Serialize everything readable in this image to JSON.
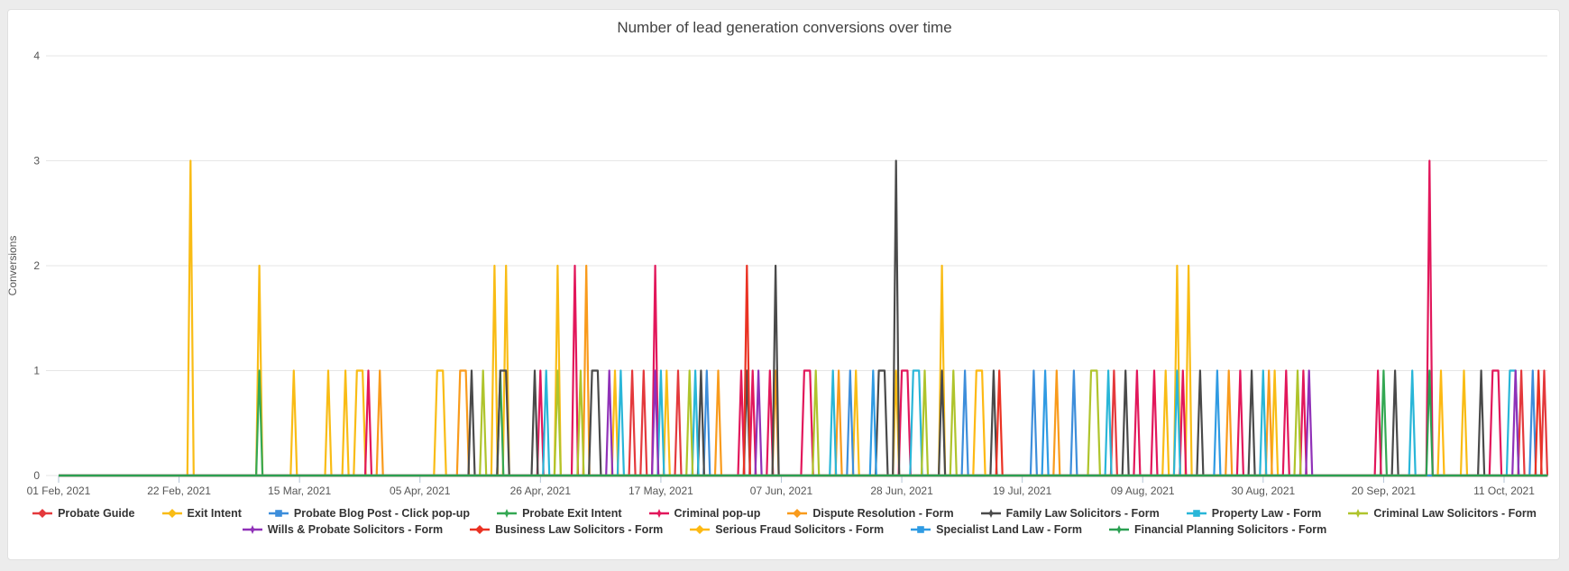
{
  "page": {
    "background": "#ececec",
    "card_background": "#ffffff"
  },
  "chart_data": {
    "type": "line",
    "title": "Number of lead generation conversions over time",
    "xlabel": "",
    "ylabel": "Conversions",
    "ylim": [
      0,
      4
    ],
    "y_ticks": [
      0,
      1,
      2,
      3,
      4
    ],
    "grid": true,
    "legend_position": "bottom",
    "x_start_date": "2021-02-01",
    "x_tick_interval_days": 21,
    "x_total_days": 259,
    "x_ticks": [
      "01 Feb, 2021",
      "22 Feb, 2021",
      "15 Mar, 2021",
      "05 Apr, 2021",
      "26 Apr, 2021",
      "17 May, 2021",
      "07 Jun, 2021",
      "28 Jun, 2021",
      "19 Jul, 2021",
      "09 Aug, 2021",
      "30 Aug, 2021",
      "20 Sep, 2021",
      "11 Oct, 2021"
    ],
    "colors": {
      "grid": "#e6e6e6",
      "axis_text": "#555555",
      "tick_mark": "#b3c4d6",
      "title_text": "#424242",
      "legend_text": "#333333"
    },
    "series": [
      {
        "name": "Probate Guide",
        "color": "#E4393C",
        "marker": "diamond",
        "points": [
          [
            100,
            1
          ],
          [
            102,
            1
          ],
          [
            108,
            1
          ],
          [
            184,
            1
          ],
          [
            255,
            1
          ],
          [
            259,
            1
          ]
        ]
      },
      {
        "name": "Exit Intent",
        "color": "#F9BC15",
        "marker": "diamond",
        "points": [
          [
            23,
            3
          ],
          [
            35,
            2
          ],
          [
            41,
            1
          ],
          [
            47,
            1
          ],
          [
            50,
            1
          ],
          [
            52,
            1
          ],
          [
            53,
            1
          ],
          [
            66,
            1
          ],
          [
            67,
            1
          ],
          [
            76,
            2
          ],
          [
            78,
            2
          ],
          [
            87,
            2
          ],
          [
            97,
            1
          ],
          [
            106,
            1
          ],
          [
            139,
            1
          ],
          [
            146,
            1
          ],
          [
            154,
            2
          ],
          [
            193,
            1
          ],
          [
            195,
            2
          ],
          [
            197,
            2
          ],
          [
            212,
            1
          ],
          [
            245,
            1
          ]
        ]
      },
      {
        "name": "Probate Blog Post - Click pop-up",
        "color": "#3D8EDB",
        "marker": "square",
        "points": [
          [
            113,
            1
          ],
          [
            138,
            1
          ],
          [
            158,
            1
          ],
          [
            170,
            1
          ],
          [
            177,
            1
          ],
          [
            257,
            1
          ]
        ]
      },
      {
        "name": "Probate Exit Intent",
        "color": "#34A853",
        "marker": "star",
        "points": [
          [
            35,
            1
          ],
          [
            77,
            1
          ],
          [
            231,
            1
          ]
        ]
      },
      {
        "name": "Criminal pop-up",
        "color": "#E2175B",
        "marker": "star",
        "points": [
          [
            54,
            1
          ],
          [
            84,
            1
          ],
          [
            90,
            2
          ],
          [
            104,
            2
          ],
          [
            119,
            1
          ],
          [
            121,
            1
          ],
          [
            124,
            1
          ],
          [
            130,
            1
          ],
          [
            131,
            1
          ],
          [
            147,
            1
          ],
          [
            148,
            1
          ],
          [
            188,
            1
          ],
          [
            191,
            1
          ],
          [
            196,
            1
          ],
          [
            206,
            1
          ],
          [
            214,
            1
          ],
          [
            217,
            1
          ],
          [
            230,
            1
          ],
          [
            239,
            3
          ],
          [
            250,
            1
          ],
          [
            251,
            1
          ]
        ]
      },
      {
        "name": "Dispute Resolution - Form",
        "color": "#F99B1C",
        "marker": "diamond",
        "points": [
          [
            56,
            1
          ],
          [
            70,
            1
          ],
          [
            71,
            1
          ],
          [
            92,
            2
          ],
          [
            115,
            1
          ],
          [
            125,
            1
          ],
          [
            136,
            1
          ],
          [
            174,
            1
          ],
          [
            204,
            1
          ],
          [
            211,
            1
          ]
        ]
      },
      {
        "name": "Family Law Solicitors - Form",
        "color": "#4A4A4A",
        "marker": "star",
        "points": [
          [
            72,
            1
          ],
          [
            77,
            1
          ],
          [
            78,
            1
          ],
          [
            83,
            1
          ],
          [
            93,
            1
          ],
          [
            94,
            1
          ],
          [
            112,
            1
          ],
          [
            120,
            1
          ],
          [
            125,
            2
          ],
          [
            143,
            1
          ],
          [
            144,
            1
          ],
          [
            146,
            3
          ],
          [
            154,
            1
          ],
          [
            163,
            1
          ],
          [
            186,
            1
          ],
          [
            199,
            1
          ],
          [
            208,
            1
          ],
          [
            233,
            1
          ],
          [
            248,
            1
          ]
        ]
      },
      {
        "name": "Property Law - Form",
        "color": "#29B6D8",
        "marker": "square",
        "points": [
          [
            85,
            1
          ],
          [
            98,
            1
          ],
          [
            105,
            1
          ],
          [
            111,
            1
          ],
          [
            135,
            1
          ],
          [
            149,
            1
          ],
          [
            150,
            1
          ],
          [
            183,
            1
          ],
          [
            195,
            1
          ],
          [
            210,
            1
          ],
          [
            236,
            1
          ],
          [
            253,
            1
          ],
          [
            254,
            1
          ]
        ]
      },
      {
        "name": "Criminal Law Solicitors - Form",
        "color": "#AFC42C",
        "marker": "star",
        "points": [
          [
            74,
            1
          ],
          [
            87,
            1
          ],
          [
            91,
            1
          ],
          [
            110,
            1
          ],
          [
            132,
            1
          ],
          [
            151,
            1
          ],
          [
            156,
            1
          ],
          [
            180,
            1
          ],
          [
            181,
            1
          ],
          [
            216,
            1
          ]
        ]
      },
      {
        "name": "Wills & Probate Solicitors - Form",
        "color": "#9031B8",
        "marker": "star",
        "points": [
          [
            96,
            1
          ],
          [
            104,
            1
          ],
          [
            122,
            1
          ],
          [
            218,
            1
          ],
          [
            254,
            1
          ]
        ]
      },
      {
        "name": "Business Law Solicitors - Form",
        "color": "#EA3223",
        "marker": "diamond",
        "points": [
          [
            120,
            2
          ],
          [
            164,
            1
          ],
          [
            258,
            1
          ]
        ]
      },
      {
        "name": "Serious Fraud Solicitors - Form",
        "color": "#FDB913",
        "marker": "diamond",
        "points": [
          [
            160,
            1
          ],
          [
            161,
            1
          ],
          [
            241,
            1
          ]
        ]
      },
      {
        "name": "Specialist Land Law - Form",
        "color": "#2F9BE3",
        "marker": "square",
        "points": [
          [
            142,
            1
          ],
          [
            172,
            1
          ],
          [
            202,
            1
          ]
        ]
      },
      {
        "name": "Financial Planning Solicitors - Form",
        "color": "#2BA052",
        "marker": "star",
        "points": [
          [
            239,
            1
          ]
        ]
      }
    ],
    "legend_rows": [
      [
        0,
        1,
        2,
        3,
        4,
        5,
        6,
        7,
        8
      ],
      [
        9,
        10,
        11,
        12,
        13
      ]
    ]
  }
}
